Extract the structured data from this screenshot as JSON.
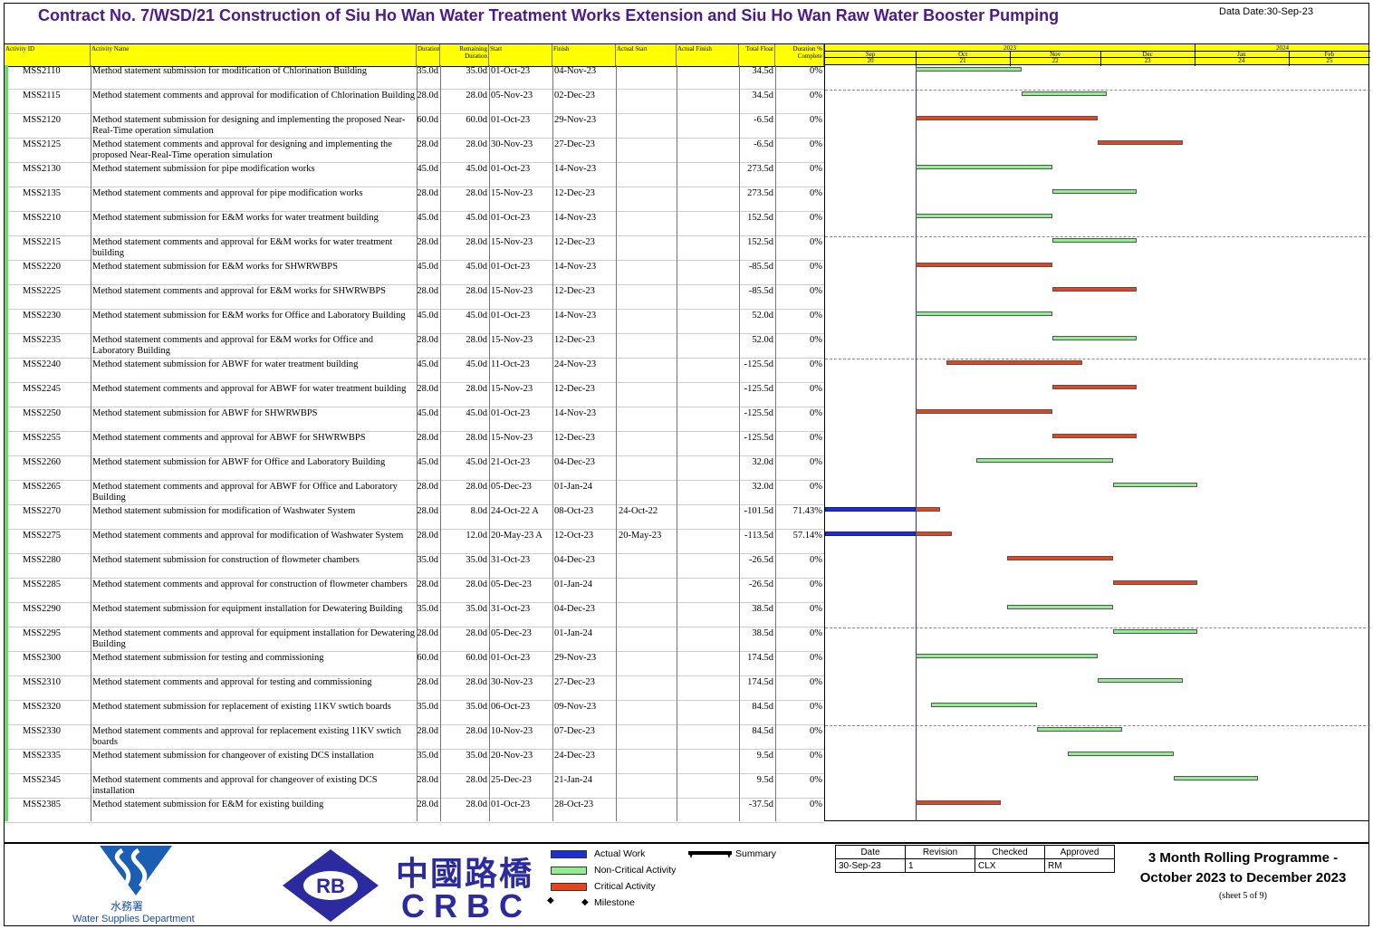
{
  "header": {
    "title": "Contract No. 7/WSD/21 Construction of Siu Ho Wan Water Treatment Works Extension and Siu Ho Wan Raw Water Booster Pumping",
    "data_date": "Data Date:30-Sep-23"
  },
  "columns": [
    "Activity ID",
    "Activity Name",
    "Duration",
    "Remaining Duration",
    "Start",
    "Finish",
    "Actual Start",
    "Actual Finish",
    "Total Float",
    "Duration % Complete"
  ],
  "timescale": {
    "years": [
      "2023",
      "2024"
    ],
    "months": [
      "Sep",
      "Oct",
      "Nov",
      "Dec",
      "Jan",
      "Feb"
    ],
    "month_nums": [
      "20",
      "21",
      "22",
      "23",
      "24",
      "25"
    ]
  },
  "chart_data": {
    "type": "gantt",
    "data_date": "30-Sep-23",
    "x_range": [
      "1-Sep-23",
      "28-Feb-24"
    ],
    "activities": [
      {
        "id": "MSS2110",
        "name": "Method statement submission for modification of Chlorination Building",
        "dur": "35.0d",
        "rem": "35.0d",
        "start": "01-Oct-23",
        "finish": "04-Nov-23",
        "astart": "",
        "afinish": "",
        "float": "34.5d",
        "pct": "0%",
        "kind": "nc",
        "s": "2023-10-01",
        "f": "2023-11-04"
      },
      {
        "id": "MSS2115",
        "name": "Method statement  comments and approval for modification of Chlorination Building",
        "dur": "28.0d",
        "rem": "28.0d",
        "start": "05-Nov-23",
        "finish": "02-Dec-23",
        "astart": "",
        "afinish": "",
        "float": "34.5d",
        "pct": "0%",
        "kind": "nc",
        "s": "2023-11-05",
        "f": "2023-12-02"
      },
      {
        "id": "MSS2120",
        "name": "Method statement submission for designing and implementing the proposed Near-Real-Time operation simulation",
        "dur": "60.0d",
        "rem": "60.0d",
        "start": "01-Oct-23",
        "finish": "29-Nov-23",
        "astart": "",
        "afinish": "",
        "float": "-6.5d",
        "pct": "0%",
        "kind": "cr",
        "s": "2023-10-01",
        "f": "2023-11-29"
      },
      {
        "id": "MSS2125",
        "name": "Method statement comments and approval for designing and implementing the proposed Near-Real-Time operation simulation",
        "dur": "28.0d",
        "rem": "28.0d",
        "start": "30-Nov-23",
        "finish": "27-Dec-23",
        "astart": "",
        "afinish": "",
        "float": "-6.5d",
        "pct": "0%",
        "kind": "cr",
        "s": "2023-11-30",
        "f": "2023-12-27"
      },
      {
        "id": "MSS2130",
        "name": "Method statement submission for pipe modification works",
        "dur": "45.0d",
        "rem": "45.0d",
        "start": "01-Oct-23",
        "finish": "14-Nov-23",
        "astart": "",
        "afinish": "",
        "float": "273.5d",
        "pct": "0%",
        "kind": "nc",
        "s": "2023-10-01",
        "f": "2023-11-14"
      },
      {
        "id": "MSS2135",
        "name": "Method statement comments and approval for pipe modification works",
        "dur": "28.0d",
        "rem": "28.0d",
        "start": "15-Nov-23",
        "finish": "12-Dec-23",
        "astart": "",
        "afinish": "",
        "float": "273.5d",
        "pct": "0%",
        "kind": "nc",
        "s": "2023-11-15",
        "f": "2023-12-12"
      },
      {
        "id": "MSS2210",
        "name": "Method statement submission for E&M works for water treatment building",
        "dur": "45.0d",
        "rem": "45.0d",
        "start": "01-Oct-23",
        "finish": "14-Nov-23",
        "astart": "",
        "afinish": "",
        "float": "152.5d",
        "pct": "0%",
        "kind": "nc",
        "s": "2023-10-01",
        "f": "2023-11-14"
      },
      {
        "id": "MSS2215",
        "name": "Method statement comments and approval for E&M works for water treatment building",
        "dur": "28.0d",
        "rem": "28.0d",
        "start": "15-Nov-23",
        "finish": "12-Dec-23",
        "astart": "",
        "afinish": "",
        "float": "152.5d",
        "pct": "0%",
        "kind": "nc",
        "s": "2023-11-15",
        "f": "2023-12-12"
      },
      {
        "id": "MSS2220",
        "name": "Method statement submission for E&M works for SHWRWBPS",
        "dur": "45.0d",
        "rem": "45.0d",
        "start": "01-Oct-23",
        "finish": "14-Nov-23",
        "astart": "",
        "afinish": "",
        "float": "-85.5d",
        "pct": "0%",
        "kind": "cr",
        "s": "2023-10-01",
        "f": "2023-11-14"
      },
      {
        "id": "MSS2225",
        "name": "Method statement comments and approval for E&M works for SHWRWBPS",
        "dur": "28.0d",
        "rem": "28.0d",
        "start": "15-Nov-23",
        "finish": "12-Dec-23",
        "astart": "",
        "afinish": "",
        "float": "-85.5d",
        "pct": "0%",
        "kind": "cr",
        "s": "2023-11-15",
        "f": "2023-12-12"
      },
      {
        "id": "MSS2230",
        "name": "Method statement submission for E&M works for Office and Laboratory Building",
        "dur": "45.0d",
        "rem": "45.0d",
        "start": "01-Oct-23",
        "finish": "14-Nov-23",
        "astart": "",
        "afinish": "",
        "float": "52.0d",
        "pct": "0%",
        "kind": "nc",
        "s": "2023-10-01",
        "f": "2023-11-14"
      },
      {
        "id": "MSS2235",
        "name": "Method statement comments and approval for E&M works for Office and Laboratory Building",
        "dur": "28.0d",
        "rem": "28.0d",
        "start": "15-Nov-23",
        "finish": "12-Dec-23",
        "astart": "",
        "afinish": "",
        "float": "52.0d",
        "pct": "0%",
        "kind": "nc",
        "s": "2023-11-15",
        "f": "2023-12-12"
      },
      {
        "id": "MSS2240",
        "name": "Method statement submission for ABWF for water treatment building",
        "dur": "45.0d",
        "rem": "45.0d",
        "start": "11-Oct-23",
        "finish": "24-Nov-23",
        "astart": "",
        "afinish": "",
        "float": "-125.5d",
        "pct": "0%",
        "kind": "cr",
        "s": "2023-10-11",
        "f": "2023-11-24"
      },
      {
        "id": "MSS2245",
        "name": "Method statement comments and approval for ABWF for water treatment building",
        "dur": "28.0d",
        "rem": "28.0d",
        "start": "15-Nov-23",
        "finish": "12-Dec-23",
        "astart": "",
        "afinish": "",
        "float": "-125.5d",
        "pct": "0%",
        "kind": "cr",
        "s": "2023-11-15",
        "f": "2023-12-12"
      },
      {
        "id": "MSS2250",
        "name": "Method statement submission for ABWF for SHWRWBPS",
        "dur": "45.0d",
        "rem": "45.0d",
        "start": "01-Oct-23",
        "finish": "14-Nov-23",
        "astart": "",
        "afinish": "",
        "float": "-125.5d",
        "pct": "0%",
        "kind": "cr",
        "s": "2023-10-01",
        "f": "2023-11-14"
      },
      {
        "id": "MSS2255",
        "name": "Method statement comments and approval for ABWF for SHWRWBPS",
        "dur": "28.0d",
        "rem": "28.0d",
        "start": "15-Nov-23",
        "finish": "12-Dec-23",
        "astart": "",
        "afinish": "",
        "float": "-125.5d",
        "pct": "0%",
        "kind": "cr",
        "s": "2023-11-15",
        "f": "2023-12-12"
      },
      {
        "id": "MSS2260",
        "name": "Method statement submission for ABWF for Office and Laboratory Building",
        "dur": "45.0d",
        "rem": "45.0d",
        "start": "21-Oct-23",
        "finish": "04-Dec-23",
        "astart": "",
        "afinish": "",
        "float": "32.0d",
        "pct": "0%",
        "kind": "nc",
        "s": "2023-10-21",
        "f": "2023-12-04"
      },
      {
        "id": "MSS2265",
        "name": "Method statement comments and approval for ABWF for Office and Laboratory Building",
        "dur": "28.0d",
        "rem": "28.0d",
        "start": "05-Dec-23",
        "finish": "01-Jan-24",
        "astart": "",
        "afinish": "",
        "float": "32.0d",
        "pct": "0%",
        "kind": "nc",
        "s": "2023-12-05",
        "f": "2024-01-01"
      },
      {
        "id": "MSS2270",
        "name": "Method statement submission for modification of Washwater System",
        "dur": "28.0d",
        "rem": "8.0d",
        "start": "24-Oct-22 A",
        "finish": "08-Oct-23",
        "astart": "24-Oct-22",
        "afinish": "",
        "float": "-101.5d",
        "pct": "71.43%",
        "kind": "cr",
        "s": "2023-10-01",
        "f": "2023-10-08",
        "actual": true
      },
      {
        "id": "MSS2275",
        "name": "Method statement comments and approval for modification of Washwater System",
        "dur": "28.0d",
        "rem": "12.0d",
        "start": "20-May-23 A",
        "finish": "12-Oct-23",
        "astart": "20-May-23",
        "afinish": "",
        "float": "-113.5d",
        "pct": "57.14%",
        "kind": "cr",
        "s": "2023-10-01",
        "f": "2023-10-12",
        "actual": true
      },
      {
        "id": "MSS2280",
        "name": "Method statement submission for construction of flowmeter chambers",
        "dur": "35.0d",
        "rem": "35.0d",
        "start": "31-Oct-23",
        "finish": "04-Dec-23",
        "astart": "",
        "afinish": "",
        "float": "-26.5d",
        "pct": "0%",
        "kind": "cr",
        "s": "2023-10-31",
        "f": "2023-12-04"
      },
      {
        "id": "MSS2285",
        "name": "Method statement comments and approval for construction of flowmeter chambers",
        "dur": "28.0d",
        "rem": "28.0d",
        "start": "05-Dec-23",
        "finish": "01-Jan-24",
        "astart": "",
        "afinish": "",
        "float": "-26.5d",
        "pct": "0%",
        "kind": "cr",
        "s": "2023-12-05",
        "f": "2024-01-01"
      },
      {
        "id": "MSS2290",
        "name": "Method statement submission for equipment installation for Dewatering Building",
        "dur": "35.0d",
        "rem": "35.0d",
        "start": "31-Oct-23",
        "finish": "04-Dec-23",
        "astart": "",
        "afinish": "",
        "float": "38.5d",
        "pct": "0%",
        "kind": "nc",
        "s": "2023-10-31",
        "f": "2023-12-04"
      },
      {
        "id": "MSS2295",
        "name": "Method statement comments and approval for equipment installation for Dewatering Building",
        "dur": "28.0d",
        "rem": "28.0d",
        "start": "05-Dec-23",
        "finish": "01-Jan-24",
        "astart": "",
        "afinish": "",
        "float": "38.5d",
        "pct": "0%",
        "kind": "nc",
        "s": "2023-12-05",
        "f": "2024-01-01"
      },
      {
        "id": "MSS2300",
        "name": "Method statement submission for testing and commissioning",
        "dur": "60.0d",
        "rem": "60.0d",
        "start": "01-Oct-23",
        "finish": "29-Nov-23",
        "astart": "",
        "afinish": "",
        "float": "174.5d",
        "pct": "0%",
        "kind": "nc",
        "s": "2023-10-01",
        "f": "2023-11-29"
      },
      {
        "id": "MSS2310",
        "name": "Method statement comments and approval for testing and commissioning",
        "dur": "28.0d",
        "rem": "28.0d",
        "start": "30-Nov-23",
        "finish": "27-Dec-23",
        "astart": "",
        "afinish": "",
        "float": "174.5d",
        "pct": "0%",
        "kind": "nc",
        "s": "2023-11-30",
        "f": "2023-12-27"
      },
      {
        "id": "MSS2320",
        "name": "Method statement submission for replacement of existing 11KV swtich boards",
        "dur": "35.0d",
        "rem": "35.0d",
        "start": "06-Oct-23",
        "finish": "09-Nov-23",
        "astart": "",
        "afinish": "",
        "float": "84.5d",
        "pct": "0%",
        "kind": "nc",
        "s": "2023-10-06",
        "f": "2023-11-09"
      },
      {
        "id": "MSS2330",
        "name": "Method statement comments and approval for replacement existing 11KV swtich boards",
        "dur": "28.0d",
        "rem": "28.0d",
        "start": "10-Nov-23",
        "finish": "07-Dec-23",
        "astart": "",
        "afinish": "",
        "float": "84.5d",
        "pct": "0%",
        "kind": "nc",
        "s": "2023-11-10",
        "f": "2023-12-07"
      },
      {
        "id": "MSS2335",
        "name": "Method statement submission for changeover of existing DCS installation",
        "dur": "35.0d",
        "rem": "35.0d",
        "start": "20-Nov-23",
        "finish": "24-Dec-23",
        "astart": "",
        "afinish": "",
        "float": "9.5d",
        "pct": "0%",
        "kind": "nc",
        "s": "2023-11-20",
        "f": "2023-12-24"
      },
      {
        "id": "MSS2345",
        "name": "Method statement comments and approval for changeover of existing DCS installation",
        "dur": "28.0d",
        "rem": "28.0d",
        "start": "25-Dec-23",
        "finish": "21-Jan-24",
        "astart": "",
        "afinish": "",
        "float": "9.5d",
        "pct": "0%",
        "kind": "nc",
        "s": "2023-12-25",
        "f": "2024-01-21"
      },
      {
        "id": "MSS2385",
        "name": "Method statement submission for E&M for existing building",
        "dur": "28.0d",
        "rem": "28.0d",
        "start": "01-Oct-23",
        "finish": "28-Oct-23",
        "astart": "",
        "afinish": "",
        "float": "-37.5d",
        "pct": "0%",
        "kind": "cr",
        "s": "2023-10-01",
        "f": "2023-10-28"
      }
    ]
  },
  "legend": {
    "actual_work": "Actual Work",
    "non_critical": "Non-Critical Activity",
    "critical": "Critical Activity",
    "milestone": "Milestone",
    "summary": "Summary"
  },
  "colors": {
    "actual": "#1c2ed6",
    "noncritical": "#90ee90",
    "critical": "#e8431f",
    "title": "#4b1a8f",
    "header_bg": "#ffff00"
  },
  "logos": {
    "wsd_cn": "水務署",
    "wsd_en": "Water Supplies Department",
    "rb": "RB",
    "crbc_cn": "中國路橋",
    "crbc_en": "CRBC"
  },
  "revision": {
    "headers": [
      "Date",
      "Revision",
      "Checked",
      "Approved"
    ],
    "values": [
      "30-Sep-23",
      "1",
      "CLX",
      "RM"
    ]
  },
  "programme": {
    "title_line1": "3 Month Rolling Programme -",
    "title_line2": "October 2023 to December 2023",
    "sheet": "(sheet 5 of 9)"
  }
}
